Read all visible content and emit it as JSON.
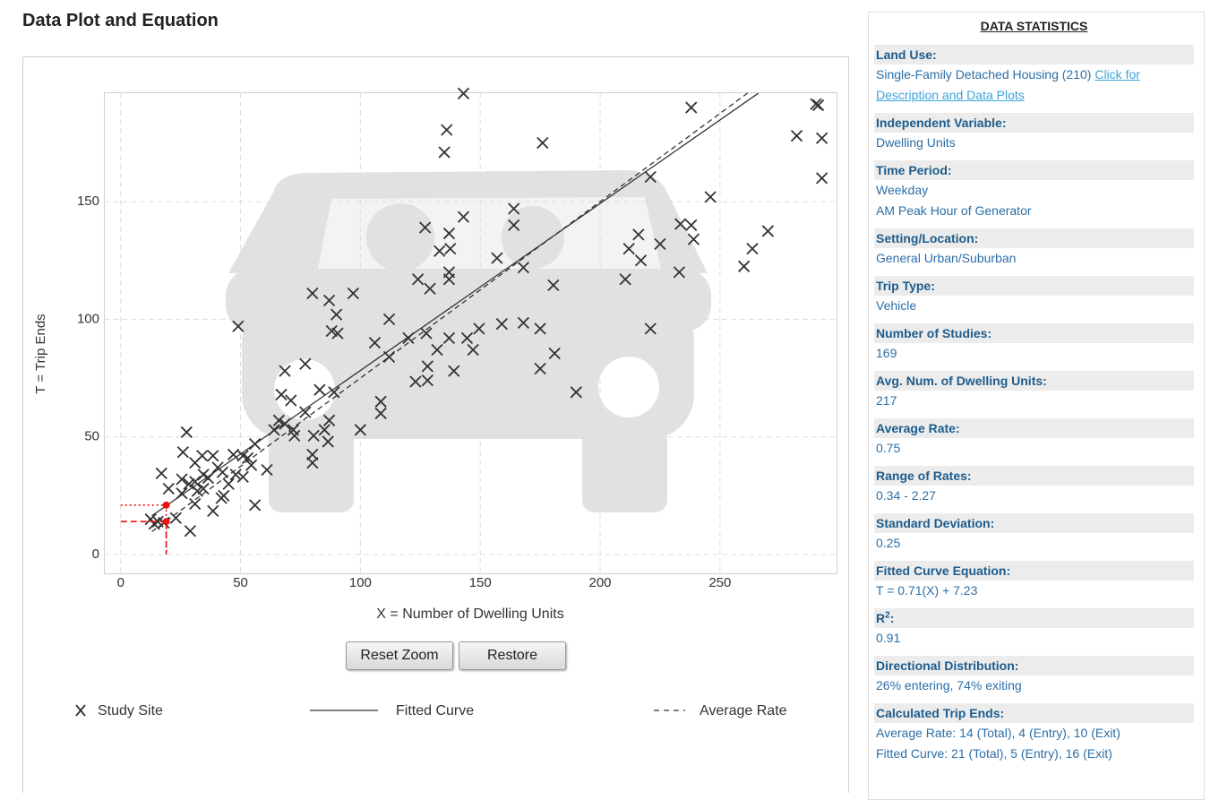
{
  "chart_data": {
    "type": "scatter",
    "title": "Data Plot and Equation",
    "x_label": "X = Number of Dwelling Units",
    "y_label": "T = Trip Ends",
    "xlim": [
      -7,
      299
    ],
    "ylim": [
      -8,
      196.5
    ],
    "xticks": [
      0,
      50,
      100,
      150,
      200,
      250
    ],
    "yticks": [
      0,
      50,
      100,
      150
    ],
    "grid": true,
    "series": [
      {
        "name": "Study Site",
        "type": "scatter",
        "color": "#333333",
        "x": [
          143,
          136,
          135,
          176,
          238,
          290,
          291,
          282,
          292.5,
          292.5,
          246,
          221,
          143,
          164,
          164,
          127,
          137,
          137.5,
          133,
          233.5,
          238,
          239,
          216,
          212,
          217,
          225,
          270,
          263.5,
          260,
          233,
          210.5,
          157,
          168,
          180.5,
          137,
          137,
          124,
          129,
          80,
          97,
          87,
          90,
          88,
          90.5,
          112,
          49,
          159,
          168,
          175,
          221,
          149.5,
          144.5,
          137,
          127.5,
          120,
          106,
          132,
          147,
          112,
          181,
          139,
          175,
          68.5,
          77,
          123,
          128,
          128,
          83,
          89,
          190,
          67,
          71,
          108.5,
          108.5,
          77,
          66,
          68.5,
          87,
          64,
          72,
          100,
          72.5,
          80.5,
          85,
          86.5,
          80,
          80,
          56,
          27.5,
          47,
          53,
          51,
          26,
          34,
          38.5,
          61,
          40.5,
          42.5,
          34.5,
          31,
          36.5,
          48,
          51,
          54.5,
          45,
          25.5,
          28.5,
          31,
          32,
          25.5,
          34.5,
          20,
          17,
          43,
          38.5,
          42,
          56,
          31,
          23,
          29,
          12.5,
          15.5,
          14,
          18
        ],
        "values": [
          196,
          180.5,
          171,
          175,
          190,
          191.5,
          191,
          178,
          177,
          160,
          152,
          160.5,
          143.5,
          147,
          140,
          139,
          136.5,
          130,
          129,
          140.5,
          140,
          134,
          136,
          130,
          125,
          132,
          137.5,
          130,
          122.5,
          120,
          117,
          126,
          122,
          114.5,
          120,
          117,
          117,
          113,
          111,
          111,
          108,
          102,
          95,
          94,
          100,
          97,
          98,
          98.5,
          96,
          96,
          96,
          92,
          92,
          94,
          92,
          90,
          87,
          87,
          84,
          85.5,
          78,
          79,
          78,
          81,
          73.5,
          74,
          80,
          70,
          69,
          69,
          68,
          65.5,
          65,
          60,
          60.5,
          57,
          55.5,
          57,
          53,
          53,
          53,
          50.5,
          50.5,
          53,
          48,
          42.5,
          39,
          47,
          52,
          42.5,
          41,
          42,
          43.5,
          42,
          42,
          36,
          37,
          35,
          34,
          39,
          32.5,
          34,
          33,
          38,
          30,
          32,
          30,
          31,
          27,
          26,
          28,
          28,
          34.5,
          25,
          18.5,
          24,
          21,
          21.5,
          15.5,
          10,
          15,
          14,
          13,
          13.5
        ]
      },
      {
        "name": "Fitted Curve",
        "type": "line",
        "dash": "solid",
        "color": "#333333",
        "x": [
          13,
          266
        ],
        "values": [
          16.46,
          196.09
        ]
      },
      {
        "name": "Average Rate",
        "type": "line",
        "dash": "dashed",
        "color": "#333333",
        "x": [
          13,
          262
        ],
        "values": [
          9.75,
          196.5
        ]
      }
    ],
    "calculated_points": {
      "color": "#ee1111",
      "x": [
        19,
        19
      ],
      "values": [
        21,
        14
      ]
    },
    "buttons": [
      "Reset Zoom",
      "Restore"
    ]
  },
  "statistics": {
    "title": "DATA STATISTICS",
    "items": [
      {
        "label": "Land Use:",
        "lines": [
          "Single-Family Detached Housing (210)"
        ],
        "link": "Click for Description and Data Plots"
      },
      {
        "label": "Independent Variable:",
        "lines": [
          "Dwelling Units"
        ]
      },
      {
        "label": "Time Period:",
        "lines": [
          "Weekday",
          "AM Peak Hour of Generator"
        ]
      },
      {
        "label": "Setting/Location:",
        "lines": [
          "General Urban/Suburban"
        ]
      },
      {
        "label": "Trip Type:",
        "lines": [
          "Vehicle"
        ]
      },
      {
        "label": "Number of Studies:",
        "lines": [
          "169"
        ]
      },
      {
        "label": "Avg. Num. of Dwelling Units:",
        "lines": [
          "217"
        ]
      },
      {
        "label": "Average Rate:",
        "lines": [
          "0.75"
        ]
      },
      {
        "label": "Range of Rates:",
        "lines": [
          "0.34 - 2.27"
        ]
      },
      {
        "label": "Standard Deviation:",
        "lines": [
          "0.25"
        ]
      },
      {
        "label": "Fitted Curve Equation:",
        "lines": [
          "T = 0.71(X) + 7.23"
        ]
      },
      {
        "label": "R",
        "label_sup": "2",
        "label_end": ":",
        "lines": [
          "0.91"
        ]
      },
      {
        "label": "Directional Distribution:",
        "lines": [
          "26% entering, 74% exiting"
        ]
      },
      {
        "label": "Calculated Trip Ends:",
        "lines": [
          "Average Rate: 14 (Total), 4 (Entry), 10 (Exit)",
          "Fitted Curve: 21 (Total), 5 (Entry), 16 (Exit)"
        ]
      }
    ]
  }
}
